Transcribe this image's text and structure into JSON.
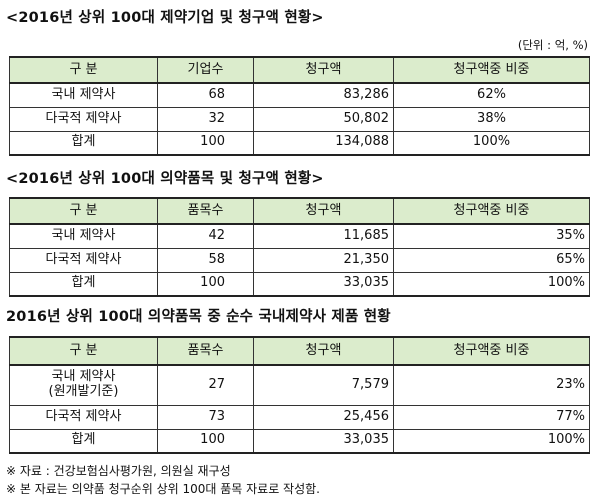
{
  "section1": {
    "title": "<2016년 상위 100대 제약기업 및 청구액 현황>",
    "unit": "(단위 : 억, %)",
    "headers": [
      "구  분",
      "기업수",
      "청구액",
      "청구액중 비중"
    ],
    "rows": [
      [
        "국내 제약사",
        "68",
        "83,286",
        "62%"
      ],
      [
        "다국적 제약사",
        "32",
        "50,802",
        "38%"
      ],
      [
        "합계",
        "100",
        "134,088",
        "100%"
      ]
    ]
  },
  "section2": {
    "title": "<2016년 상위 100대 의약품목 및 청구액 현황>",
    "headers": [
      "구  분",
      "품목수",
      "청구액",
      "청구액중 비중"
    ],
    "rows": [
      [
        "국내 제약사",
        "42",
        "11,685",
        "35%"
      ],
      [
        "다국적 제약사",
        "58",
        "21,350",
        "65%"
      ],
      [
        "합계",
        "100",
        "33,035",
        "100%"
      ]
    ]
  },
  "section3": {
    "title": "2016년 상위 100대 의약품목 중 순수 국내제약사 제품 현황",
    "headers": [
      "구  분",
      "품목수",
      "청구액",
      "청구액중 비중"
    ],
    "rows": [
      [
        "국내 제약사\n(원개발기준)",
        "27",
        "7,579",
        "23%"
      ],
      [
        "다국적 제약사",
        "73",
        "25,456",
        "77%"
      ],
      [
        "합계",
        "100",
        "33,035",
        "100%"
      ]
    ]
  },
  "notes": [
    "※ 자료 : 건강보험심사평가원, 의원실 재구성",
    "※ 본 자료는 의약품 청구순위 상위 100대 품목 자료로 작성함."
  ]
}
